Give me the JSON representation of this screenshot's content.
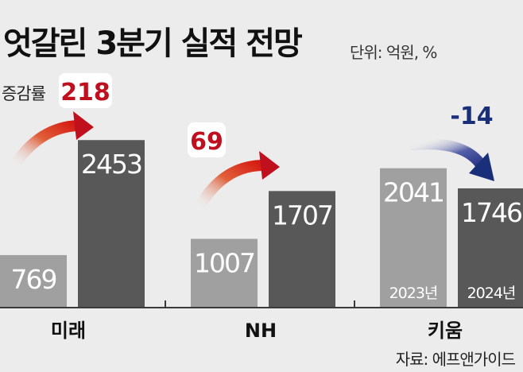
{
  "title": "엇갈린 3분기 실적 전망",
  "unit": "단위: 억원, %",
  "source": "자료: 에프앤가이드",
  "change_rate_label": "증감률",
  "colors": {
    "bar_2023": "#a0a0a0",
    "bar_2024": "#585858",
    "positive": "#c0101e",
    "negative": "#1a2f7a",
    "background": "#ececec"
  },
  "chart_data": {
    "type": "bar",
    "categories": [
      "미래",
      "NH",
      "키움"
    ],
    "series": [
      {
        "name": "2023년",
        "values": [
          769,
          1007,
          2041
        ]
      },
      {
        "name": "2024년",
        "values": [
          2453,
          1707,
          1746
        ]
      }
    ],
    "changes": [
      "218",
      "69",
      "-14"
    ],
    "ylim": [
      0,
      2700
    ],
    "grid": false,
    "legend": "inside bars (키움)"
  }
}
